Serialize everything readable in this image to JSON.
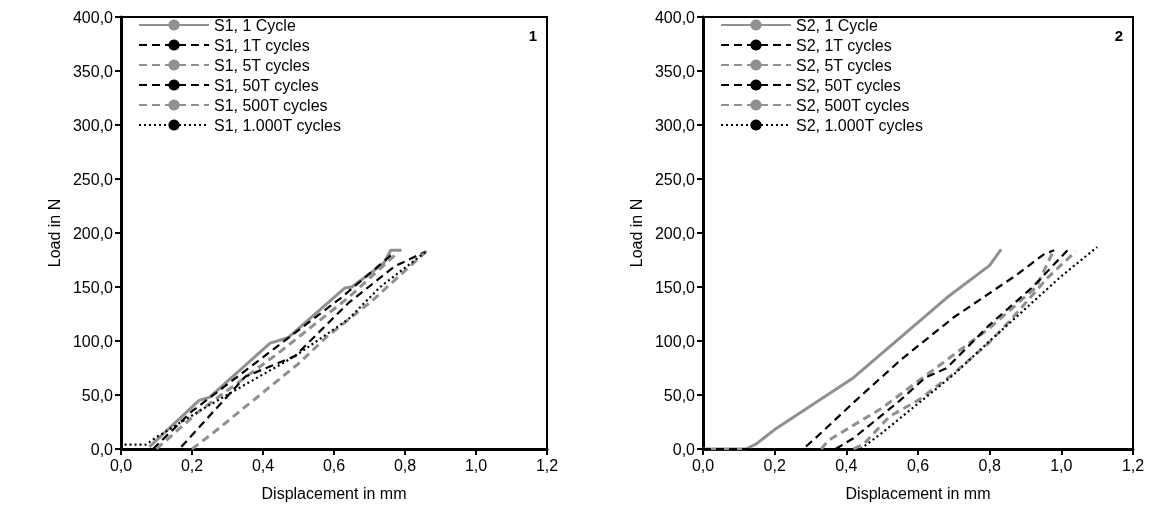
{
  "chart_data": [
    {
      "type": "line",
      "xlabel": "Displacement in mm",
      "ylabel": "Load in N",
      "annotations": [
        "1"
      ],
      "legend": "top left",
      "grid": false,
      "marker": "none",
      "xlim": [
        0,
        1.2
      ],
      "xticks": [
        {
          "value": 0,
          "label": "0,0"
        },
        {
          "value": 0.2,
          "label": "0,2"
        },
        {
          "value": 0.4,
          "label": "0,4"
        },
        {
          "value": 0.6,
          "label": "0,6"
        },
        {
          "value": 0.8,
          "label": "0,8"
        },
        {
          "value": 1.0,
          "label": "1,0"
        },
        {
          "value": 1.2,
          "label": "1,2"
        }
      ],
      "ylim": [
        0,
        400
      ],
      "yticks": [
        {
          "value": 0,
          "label": "0,0"
        },
        {
          "value": 50,
          "label": "50,0"
        },
        {
          "value": 100,
          "label": "100,0"
        },
        {
          "value": 150,
          "label": "150,0"
        },
        {
          "value": 200,
          "label": "200,0"
        },
        {
          "value": 250,
          "label": "250,0"
        },
        {
          "value": 300,
          "label": "300,0"
        },
        {
          "value": 350,
          "label": "350,0"
        },
        {
          "value": 400,
          "label": "400,0"
        }
      ],
      "series": [
        {
          "name": "S1, 1 Cycle",
          "color": "#909090",
          "line_style": "solid",
          "x": [
            0.08,
            0.22,
            0.25,
            0.42,
            0.47,
            0.63,
            0.65,
            0.74,
            0.76,
            0.79
          ],
          "values": [
            2,
            45,
            48,
            98,
            103,
            149,
            150,
            172,
            184,
            184
          ]
        },
        {
          "name": "S1, 1T cycles",
          "color": "#000000",
          "line_style": "dashed",
          "x": [
            0.09,
            0.2,
            0.42,
            0.62,
            0.77
          ],
          "values": [
            0,
            35,
            90,
            140,
            182
          ]
        },
        {
          "name": "S1, 5T cycles",
          "color": "#909090",
          "line_style": "dashed",
          "x": [
            0.1,
            0.22,
            0.44,
            0.64,
            0.78
          ],
          "values": [
            0,
            35,
            88,
            140,
            182
          ]
        },
        {
          "name": "S1, 50T cycles",
          "color": "#000000",
          "line_style": "dashed",
          "x": [
            0.17,
            0.35,
            0.49,
            0.64,
            0.77,
            0.86
          ],
          "values": [
            2,
            67,
            86,
            135,
            169,
            183
          ]
        },
        {
          "name": "S1, 500T cycles",
          "color": "#909090",
          "line_style": "dashed",
          "x": [
            0.2,
            0.26,
            0.5,
            0.58,
            0.71,
            0.86
          ],
          "values": [
            0,
            15,
            79,
            104,
            138,
            183
          ]
        },
        {
          "name": "S1, 1.000T cycles",
          "color": "#000000",
          "line_style": "dotted",
          "x": [
            0.01,
            0.07,
            0.1,
            0.24,
            0.49,
            0.64,
            0.73,
            0.86
          ],
          "values": [
            4,
            4,
            11,
            39,
            86,
            120,
            150,
            183
          ]
        }
      ]
    },
    {
      "type": "line",
      "xlabel": "Displacement in mm",
      "ylabel": "Load in N",
      "annotations": [
        "2"
      ],
      "legend": "top left",
      "grid": false,
      "marker": "none",
      "xlim": [
        0,
        1.2
      ],
      "xticks": [
        {
          "value": 0,
          "label": "0,0"
        },
        {
          "value": 0.2,
          "label": "0,2"
        },
        {
          "value": 0.4,
          "label": "0,4"
        },
        {
          "value": 0.6,
          "label": "0,6"
        },
        {
          "value": 0.8,
          "label": "0,8"
        },
        {
          "value": 1.0,
          "label": "1,0"
        },
        {
          "value": 1.2,
          "label": "1,2"
        }
      ],
      "ylim": [
        0,
        400
      ],
      "yticks": [
        {
          "value": 0,
          "label": "0,0"
        },
        {
          "value": 50,
          "label": "50,0"
        },
        {
          "value": 100,
          "label": "100,0"
        },
        {
          "value": 150,
          "label": "150,0"
        },
        {
          "value": 200,
          "label": "200,0"
        },
        {
          "value": 250,
          "label": "250,0"
        },
        {
          "value": 300,
          "label": "300,0"
        },
        {
          "value": 350,
          "label": "350,0"
        },
        {
          "value": 400,
          "label": "400,0"
        }
      ],
      "series": [
        {
          "name": "S2, 1 Cycle",
          "color": "#909090",
          "line_style": "solid",
          "x": [
            0,
            0.12,
            0.15,
            0.2,
            0.42,
            0.68,
            0.8,
            0.83,
            0.8
          ],
          "values": [
            0,
            0,
            5,
            18,
            66,
            140,
            170,
            184,
            170
          ]
        },
        {
          "name": "S2, 1T cycles",
          "color": "#000000",
          "line_style": "dashed",
          "x": [
            0,
            0.28,
            0.33,
            0.42,
            0.55,
            0.7,
            0.87,
            0.95,
            0.98
          ],
          "values": [
            0,
            0,
            15,
            43,
            82,
            122,
            160,
            180,
            184
          ]
        },
        {
          "name": "S2, 5T cycles",
          "color": "#909090",
          "line_style": "dashed",
          "x": [
            0.33,
            0.35,
            0.5,
            0.65,
            0.8,
            0.93,
            0.98
          ],
          "values": [
            0,
            8,
            38,
            75,
            112,
            150,
            185
          ]
        },
        {
          "name": "S2, 50T cycles",
          "color": "#000000",
          "line_style": "dashed",
          "x": [
            0.37,
            0.42,
            0.55,
            0.62,
            0.68,
            0.8,
            0.92,
            1.02
          ],
          "values": [
            0,
            10,
            45,
            66,
            75,
            115,
            150,
            185
          ]
        },
        {
          "name": "S2, 500T cycles",
          "color": "#909090",
          "line_style": "dashed",
          "x": [
            0.42,
            0.45,
            0.52,
            0.6,
            0.7,
            0.8,
            0.86,
            0.96,
            1.04
          ],
          "values": [
            0,
            5,
            30,
            45,
            70,
            99,
            120,
            158,
            183
          ]
        },
        {
          "name": "S2, 1.000T cycles",
          "color": "#000000",
          "line_style": "dotted",
          "x": [
            0.44,
            0.5,
            0.7,
            0.8,
            0.9,
            1.0,
            1.1
          ],
          "values": [
            0,
            15,
            69,
            100,
            130,
            160,
            187
          ]
        }
      ]
    }
  ]
}
